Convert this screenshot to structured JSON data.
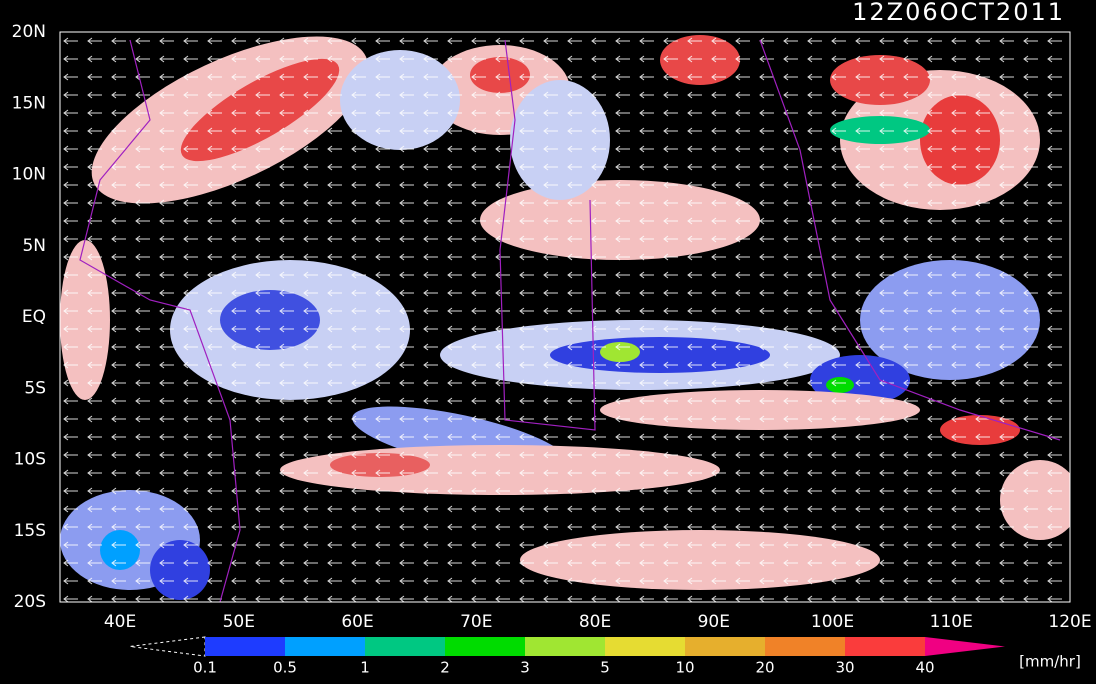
{
  "map": {
    "title": "12Z06OCT2011",
    "lat_labels": [
      "20N",
      "15N",
      "10N",
      "5N",
      "EQ",
      "5S",
      "10S",
      "15S",
      "20S"
    ],
    "lon_labels": [
      "40E",
      "50E",
      "60E",
      "70E",
      "80E",
      "90E",
      "100E",
      "110E",
      "120E"
    ]
  },
  "legend": {
    "labels": [
      "0.1",
      "0.5",
      "1",
      "2",
      "3",
      "5",
      "10",
      "20",
      "30",
      "40"
    ],
    "colors": [
      "#1e3cff",
      "#00a0ff",
      "#00c882",
      "#00dc00",
      "#a0e632",
      "#e6dc32",
      "#e6af2d",
      "#f08228",
      "#fa3c3c"
    ],
    "over_color": "#f00082",
    "unit": "[mm/hr]"
  }
}
